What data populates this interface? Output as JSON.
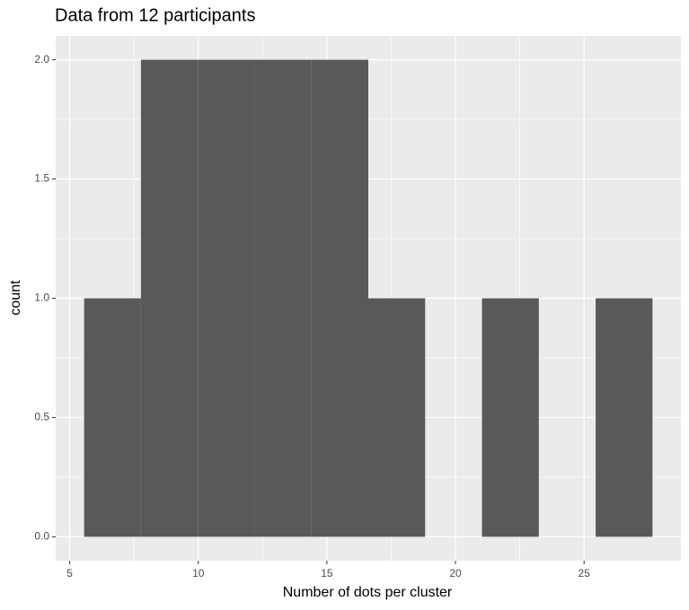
{
  "chart_data": {
    "type": "histogram",
    "title": "Data from 12 participants",
    "x_label": "Number of dots per cluster",
    "y_label": "count",
    "bins": [
      5.56,
      7.77,
      9.98,
      12.19,
      14.4,
      16.61,
      18.82,
      21.03,
      23.24,
      25.45,
      27.66
    ],
    "values": [
      1,
      2,
      2,
      2,
      2,
      1,
      0,
      1,
      0,
      1
    ],
    "color": "#595959",
    "xlim": [
      4.455,
      28.765
    ],
    "xticks": [
      5,
      10,
      15,
      20,
      25
    ],
    "ylim": [
      -0.1,
      2.1
    ],
    "yticks": [
      {
        "value": 0,
        "label": "0.0"
      },
      {
        "value": 0.5,
        "label": "0.5"
      },
      {
        "value": 1,
        "label": "1.0"
      },
      {
        "value": 1.5,
        "label": "1.5"
      },
      {
        "value": 2,
        "label": "2.0"
      }
    ],
    "grid": true
  }
}
